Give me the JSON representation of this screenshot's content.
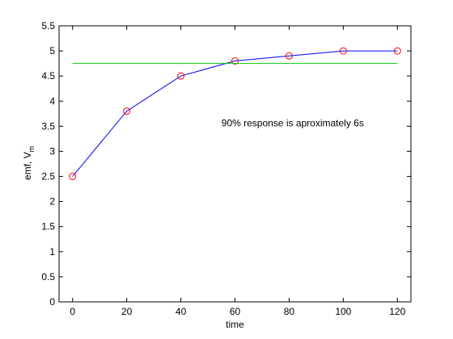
{
  "chart_data": {
    "type": "line",
    "title": "",
    "xlabel": "time",
    "ylabel": "emf, V",
    "ylabel_subscript": "m",
    "xlim": [
      -5,
      125
    ],
    "ylim": [
      0,
      5.5
    ],
    "xticks": [
      0,
      20,
      40,
      60,
      80,
      100,
      120
    ],
    "xtick_labels": [
      "0",
      "20",
      "40",
      "60",
      "80",
      "100",
      "120"
    ],
    "yticks": [
      0,
      0.5,
      1,
      1.5,
      2,
      2.5,
      3,
      3.5,
      4,
      4.5,
      5,
      5.5
    ],
    "ytick_labels": [
      "0",
      "0.5",
      "1",
      "1.5",
      "2",
      "2.5",
      "3",
      "3.5",
      "4",
      "4.5",
      "5",
      "5.5"
    ],
    "grid": false,
    "legend": "none",
    "series": [
      {
        "x": [
          0,
          20,
          40,
          60,
          80,
          100,
          120
        ],
        "y": [
          2.5,
          3.8,
          4.5,
          4.8,
          4.9,
          5.0,
          5.0
        ],
        "line_color": "#0000ff",
        "marker": "circle",
        "marker_color": "#ff0000"
      },
      {
        "x": [
          0,
          120
        ],
        "y": [
          4.75,
          4.75
        ],
        "line_color": "#00cc00",
        "marker": "none"
      }
    ],
    "annotations": [
      {
        "text": "90% response is aproximately 6s",
        "x": 55,
        "y": 3.5
      }
    ]
  }
}
